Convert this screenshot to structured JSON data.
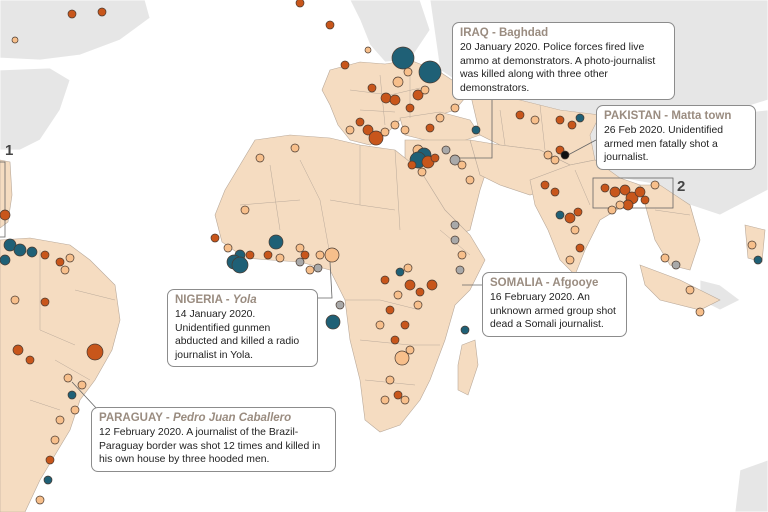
{
  "map": {
    "colors": {
      "ocean": "#ffffff",
      "land_active": "#f5dcc1",
      "land_other": "#e6e6e6",
      "border": "#b9a99a",
      "marker_orange": "#c8561b",
      "marker_teal": "#1f6076",
      "marker_peach": "#f7bf8b",
      "marker_gray": "#a9a9a9",
      "marker_black": "#111111"
    },
    "region_labels": [
      "1",
      "2"
    ]
  },
  "callouts": {
    "iraq": {
      "country": "IRAQ",
      "sep": " - ",
      "place": "Baghdad",
      "text": "20 January 2020. Police forces fired live ammo at demonstrators. A photo-journalist was killed along with three other demonstrators."
    },
    "pakistan": {
      "country": "PAKISTAN",
      "sep": " - ",
      "place": "Matta town",
      "text": "26 Feb 2020. Unidentified armed men fatally shot a journalist."
    },
    "somalia": {
      "country": "SOMALIA",
      "sep": " - ",
      "place": "Afgooye",
      "text": "16 February 2020. An unknown armed group shot dead a Somali journalist."
    },
    "nigeria": {
      "country": "NIGERIA",
      "sep": " - ",
      "place": "Yola",
      "text": "14 January 2020. Unidentified gunmen abducted and killed a radio journalist in Yola."
    },
    "paraguay": {
      "country": "PARAGUAY",
      "sep": " - ",
      "place": "Pedro Juan Caballero",
      "text": "12 February 2020. A journalist of the Brazil-Paraguay border was shot 12 times and killed in his own house by three hooded men."
    }
  }
}
